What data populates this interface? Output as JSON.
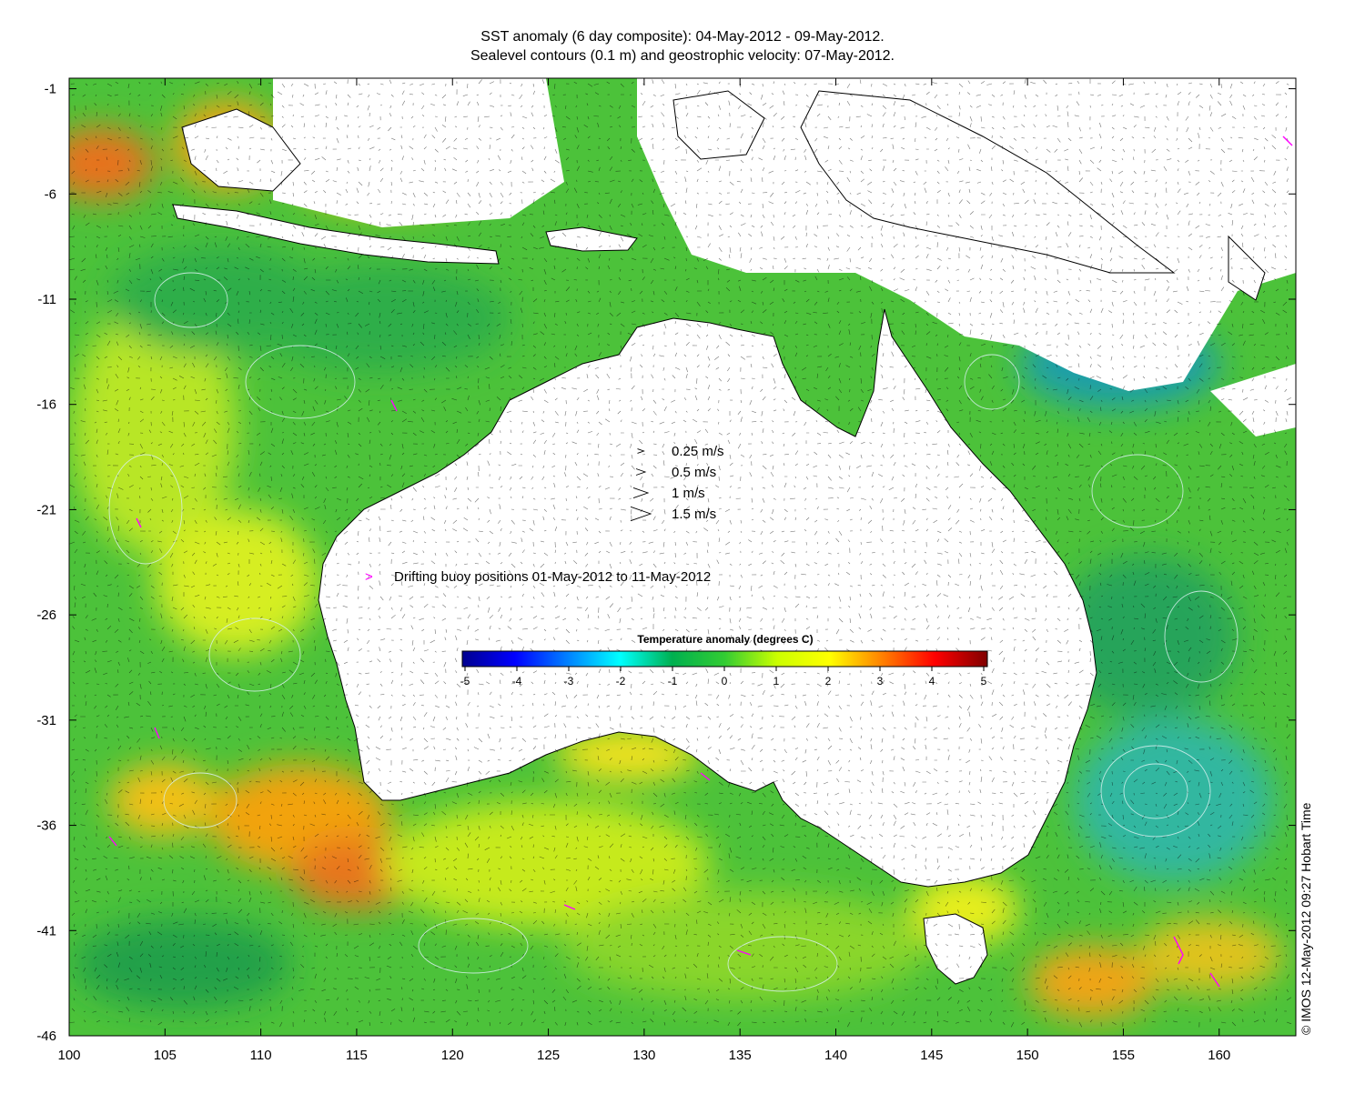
{
  "title": {
    "line1": "SST anomaly (6 day composite): 04-May-2012 - 09-May-2012.",
    "line2": "Sealevel contours (0.1 m) and geostrophic velocity: 07-May-2012."
  },
  "map": {
    "lon_range": [
      100,
      164
    ],
    "lat_range": [
      -46,
      -0.5
    ],
    "x_ticks": [
      "100",
      "105",
      "110",
      "115",
      "120",
      "125",
      "130",
      "135",
      "140",
      "145",
      "150",
      "155",
      "160"
    ],
    "y_ticks": [
      "-1",
      "-6",
      "-11",
      "-16",
      "-21",
      "-26",
      "-31",
      "-36",
      "-41",
      "-46"
    ],
    "colors": {
      "ocean_base": "#4cc23a",
      "land": "#ffffff",
      "buoy": "#ff00ff"
    }
  },
  "velocity_scale": {
    "items": [
      {
        "label": "0.25 m/s",
        "speed": 0.25
      },
      {
        "label": "0.5 m/s",
        "speed": 0.5
      },
      {
        "label": "1 m/s",
        "speed": 1
      },
      {
        "label": "1.5 m/s",
        "speed": 1.5
      }
    ]
  },
  "buoy_legend": {
    "symbol": ">",
    "label": "Drifting buoy positions 01-May-2012 to 11-May-2012"
  },
  "colorbar": {
    "title": "Temperature anomaly (degrees C)",
    "ticks": [
      "-5",
      "-4",
      "-3",
      "-2",
      "-1",
      "0",
      "1",
      "2",
      "3",
      "4",
      "5"
    ],
    "range": [
      -5,
      5
    ],
    "stops": [
      "#00008f",
      "#0000ff",
      "#0080ff",
      "#00ffff",
      "#00b050",
      "#33cc33",
      "#ccff00",
      "#ffff00",
      "#ff8000",
      "#ff0000",
      "#800000"
    ]
  },
  "credit": "© IMOS 12-May-2012 09:27 Hobart Time"
}
